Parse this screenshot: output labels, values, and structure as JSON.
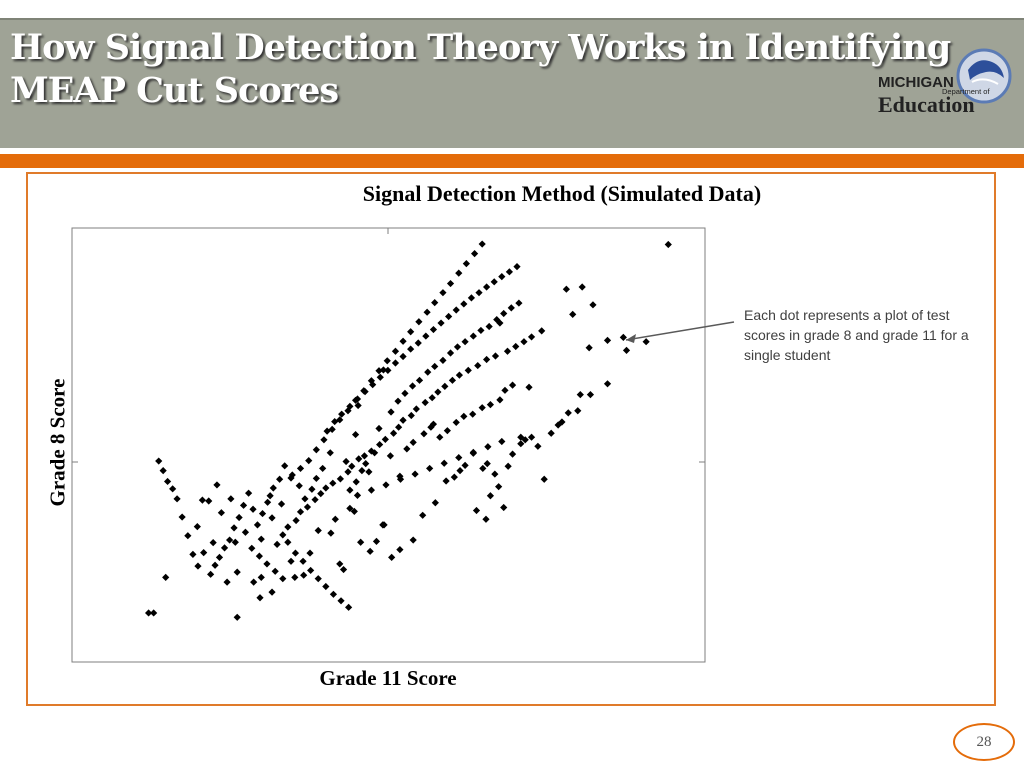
{
  "slide": {
    "title_line1": "How Signal Detection Theory Works in Identifying",
    "title_line2": "MEAP Cut Scores",
    "page_number": "28",
    "logo": {
      "line1": "MICHIGAN",
      "line2": "Department of",
      "line3": "Education"
    },
    "annotation": "Each dot represents a plot of test scores in grade 8 and grade 11 for a single student",
    "colors": {
      "header": "#9fa396",
      "accent": "#e46c0a",
      "marker": "#000000"
    }
  },
  "chart_data": {
    "type": "scatter",
    "title": "Signal Detection Method (Simulated Data)",
    "xlabel": "Grade 11 Score",
    "ylabel": "Grade 8 Score",
    "xlim": [
      0,
      100
    ],
    "ylim": [
      0,
      100
    ],
    "grid": false,
    "marker": "diamond",
    "points": [
      [
        12.1,
        11.3
      ],
      [
        12.9,
        11.3
      ],
      [
        14.8,
        19.5
      ],
      [
        21.6,
        37.1
      ],
      [
        25.1,
        37.6
      ],
      [
        26.1,
        20.7
      ],
      [
        29.9,
        19.5
      ],
      [
        28.7,
        18.4
      ],
      [
        31.6,
        16.1
      ],
      [
        35.2,
        19.5
      ],
      [
        34.6,
        23.2
      ],
      [
        36.6,
        20.0
      ],
      [
        37.6,
        25.1
      ],
      [
        38.9,
        30.3
      ],
      [
        40.9,
        29.7
      ],
      [
        42.3,
        22.6
      ],
      [
        42.9,
        21.3
      ],
      [
        41.6,
        32.9
      ],
      [
        43.9,
        35.4
      ],
      [
        44.6,
        34.7
      ],
      [
        45.6,
        27.6
      ],
      [
        47.1,
        25.5
      ],
      [
        48.1,
        27.8
      ],
      [
        49.3,
        31.6
      ],
      [
        50.5,
        24.1
      ],
      [
        51.8,
        25.9
      ],
      [
        53.9,
        28.1
      ],
      [
        55.4,
        33.8
      ],
      [
        57.4,
        36.7
      ],
      [
        59.1,
        41.7
      ],
      [
        60.4,
        42.6
      ],
      [
        61.3,
        44.1
      ],
      [
        62.1,
        45.3
      ],
      [
        63.4,
        48.1
      ],
      [
        64.9,
        44.6
      ],
      [
        65.6,
        45.7
      ],
      [
        66.8,
        43.3
      ],
      [
        67.4,
        40.4
      ],
      [
        68.9,
        45.1
      ],
      [
        69.6,
        47.9
      ],
      [
        70.9,
        50.3
      ],
      [
        71.6,
        51.2
      ],
      [
        72.6,
        51.8
      ],
      [
        73.6,
        49.7
      ],
      [
        74.6,
        42.1
      ],
      [
        75.7,
        52.7
      ],
      [
        76.8,
        54.6
      ],
      [
        77.4,
        55.3
      ],
      [
        78.4,
        57.4
      ],
      [
        79.9,
        57.9
      ],
      [
        80.3,
        61.6
      ],
      [
        81.9,
        61.6
      ],
      [
        63.9,
        34.9
      ],
      [
        65.4,
        32.9
      ],
      [
        66.1,
        38.3
      ],
      [
        68.2,
        35.6
      ],
      [
        70.9,
        51.8
      ],
      [
        48.5,
        53.8
      ],
      [
        49.1,
        31.6
      ],
      [
        50.3,
        47.5
      ],
      [
        51.8,
        42.8
      ],
      [
        46.9,
        43.8
      ],
      [
        43.9,
        39.6
      ],
      [
        44.9,
        41.5
      ],
      [
        45.8,
        44.1
      ],
      [
        46.4,
        45.7
      ],
      [
        47.8,
        48.2
      ],
      [
        52.9,
        49.1
      ],
      [
        53.9,
        50.6
      ],
      [
        55.6,
        52.6
      ],
      [
        56.7,
        54.1
      ],
      [
        57.1,
        54.8
      ],
      [
        58.1,
        51.8
      ],
      [
        59.3,
        53.3
      ],
      [
        60.7,
        55.2
      ],
      [
        61.9,
        56.6
      ],
      [
        63.3,
        57.1
      ],
      [
        64.8,
        58.6
      ],
      [
        66.1,
        59.3
      ],
      [
        67.6,
        60.4
      ],
      [
        68.4,
        62.6
      ],
      [
        69.6,
        63.8
      ],
      [
        72.2,
        63.3
      ],
      [
        31.6,
        33.2
      ],
      [
        32.4,
        27.1
      ],
      [
        33.3,
        29.3
      ],
      [
        34.1,
        31.1
      ],
      [
        35.4,
        32.6
      ],
      [
        36.1,
        34.6
      ],
      [
        37.2,
        35.7
      ],
      [
        38.4,
        37.4
      ],
      [
        39.3,
        38.8
      ],
      [
        40.1,
        40.1
      ],
      [
        41.2,
        41.2
      ],
      [
        42.4,
        42.2
      ],
      [
        43.6,
        43.8
      ],
      [
        44.2,
        45.1
      ],
      [
        45.3,
        46.8
      ],
      [
        46.2,
        47.5
      ],
      [
        47.3,
        48.6
      ],
      [
        48.6,
        50.1
      ],
      [
        49.5,
        51.3
      ],
      [
        50.8,
        52.7
      ],
      [
        51.6,
        54.1
      ],
      [
        52.3,
        55.7
      ],
      [
        53.6,
        56.8
      ],
      [
        54.4,
        58.3
      ],
      [
        55.8,
        59.8
      ],
      [
        56.9,
        60.9
      ],
      [
        57.8,
        62.2
      ],
      [
        58.9,
        63.5
      ],
      [
        60.1,
        64.9
      ],
      [
        61.2,
        66.1
      ],
      [
        62.6,
        67.2
      ],
      [
        64.1,
        68.3
      ],
      [
        65.5,
        69.7
      ],
      [
        66.9,
        70.5
      ],
      [
        68.8,
        71.6
      ],
      [
        70.1,
        72.7
      ],
      [
        71.4,
        73.8
      ],
      [
        72.6,
        74.9
      ],
      [
        74.2,
        76.3
      ],
      [
        79.1,
        80.1
      ],
      [
        81.7,
        72.4
      ],
      [
        84.6,
        64.1
      ],
      [
        87.6,
        71.8
      ],
      [
        90.7,
        73.8
      ],
      [
        94.2,
        96.2
      ],
      [
        87.1,
        74.8
      ],
      [
        84.6,
        74.1
      ],
      [
        67.6,
        78.1
      ],
      [
        49.2,
        67.3
      ],
      [
        45.2,
        59.1
      ],
      [
        44.8,
        52.4
      ],
      [
        43.3,
        46.2
      ],
      [
        40.8,
        48.2
      ],
      [
        39.6,
        44.6
      ],
      [
        38.6,
        42.3
      ],
      [
        37.9,
        39.8
      ],
      [
        36.8,
        37.6
      ],
      [
        35.9,
        40.6
      ],
      [
        34.8,
        43.1
      ],
      [
        33.6,
        45.2
      ],
      [
        32.8,
        42.1
      ],
      [
        31.8,
        40.1
      ],
      [
        30.9,
        36.8
      ],
      [
        30.1,
        34.2
      ],
      [
        29.3,
        31.6
      ],
      [
        28.6,
        35.2
      ],
      [
        27.9,
        38.9
      ],
      [
        27.1,
        36.1
      ],
      [
        26.4,
        33.3
      ],
      [
        25.6,
        30.9
      ],
      [
        24.9,
        28.1
      ],
      [
        24.1,
        26.3
      ],
      [
        23.3,
        24.1
      ],
      [
        22.6,
        22.3
      ],
      [
        21.9,
        20.2
      ],
      [
        20.8,
        25.2
      ],
      [
        19.9,
        22.1
      ],
      [
        19.1,
        24.8
      ],
      [
        18.3,
        29.1
      ],
      [
        17.4,
        33.4
      ],
      [
        16.6,
        37.6
      ],
      [
        15.9,
        39.9
      ],
      [
        15.1,
        41.6
      ],
      [
        14.4,
        44.1
      ],
      [
        13.7,
        46.3
      ],
      [
        50.4,
        57.6
      ],
      [
        51.5,
        60.1
      ],
      [
        52.6,
        61.9
      ],
      [
        53.8,
        63.6
      ],
      [
        54.9,
        64.9
      ],
      [
        56.2,
        66.8
      ],
      [
        57.3,
        68.1
      ],
      [
        58.6,
        69.5
      ],
      [
        59.8,
        71.2
      ],
      [
        60.9,
        72.6
      ],
      [
        62.1,
        73.8
      ],
      [
        63.4,
        75.1
      ],
      [
        64.6,
        76.4
      ],
      [
        65.9,
        77.3
      ],
      [
        67.1,
        78.9
      ],
      [
        68.2,
        80.3
      ],
      [
        69.4,
        81.6
      ],
      [
        70.6,
        82.7
      ],
      [
        40.3,
        53.2
      ],
      [
        41.5,
        55.4
      ],
      [
        42.6,
        57.1
      ],
      [
        43.9,
        58.9
      ],
      [
        45.1,
        60.6
      ],
      [
        46.3,
        62.3
      ],
      [
        47.5,
        63.9
      ],
      [
        48.7,
        65.6
      ],
      [
        49.9,
        67.2
      ],
      [
        51.1,
        68.9
      ],
      [
        52.3,
        70.4
      ],
      [
        53.5,
        72.1
      ],
      [
        54.7,
        73.5
      ],
      [
        55.9,
        75.1
      ],
      [
        57.1,
        76.6
      ],
      [
        58.3,
        78.1
      ],
      [
        59.5,
        79.6
      ],
      [
        60.7,
        81.1
      ],
      [
        61.9,
        82.5
      ],
      [
        63.1,
        83.9
      ],
      [
        64.3,
        85.1
      ],
      [
        65.5,
        86.4
      ],
      [
        66.7,
        87.6
      ],
      [
        67.9,
        88.8
      ],
      [
        69.1,
        89.9
      ],
      [
        70.3,
        91.1
      ],
      [
        34.1,
        27.6
      ],
      [
        35.3,
        25.1
      ],
      [
        36.5,
        23.2
      ],
      [
        37.7,
        21.1
      ],
      [
        38.9,
        19.2
      ],
      [
        40.1,
        17.4
      ],
      [
        41.3,
        15.6
      ],
      [
        42.5,
        14.1
      ],
      [
        43.7,
        12.6
      ],
      [
        28.4,
        26.2
      ],
      [
        29.6,
        24.4
      ],
      [
        30.8,
        22.6
      ],
      [
        32.1,
        20.9
      ],
      [
        33.3,
        19.2
      ],
      [
        20.6,
        37.3
      ],
      [
        23.6,
        34.4
      ],
      [
        25.8,
        27.6
      ],
      [
        27.4,
        29.9
      ],
      [
        29.9,
        28.3
      ],
      [
        31.3,
        38.3
      ],
      [
        33.1,
        36.4
      ],
      [
        34.6,
        42.4
      ],
      [
        36.1,
        44.6
      ],
      [
        37.4,
        46.4
      ],
      [
        38.6,
        48.9
      ],
      [
        39.8,
        51.2
      ],
      [
        41.1,
        53.6
      ],
      [
        42.3,
        55.8
      ],
      [
        43.6,
        57.9
      ],
      [
        44.8,
        60.3
      ],
      [
        46.1,
        62.5
      ],
      [
        47.3,
        64.8
      ],
      [
        48.5,
        67.1
      ],
      [
        49.8,
        69.4
      ],
      [
        51.1,
        71.6
      ],
      [
        52.3,
        73.9
      ],
      [
        53.5,
        76.1
      ],
      [
        54.8,
        78.4
      ],
      [
        56.1,
        80.6
      ],
      [
        57.3,
        82.8
      ],
      [
        58.6,
        85.1
      ],
      [
        59.8,
        87.2
      ],
      [
        61.1,
        89.6
      ],
      [
        62.3,
        91.8
      ],
      [
        63.6,
        94.1
      ],
      [
        64.8,
        96.3
      ],
      [
        78.1,
        85.9
      ],
      [
        80.6,
        86.4
      ],
      [
        82.3,
        82.3
      ],
      [
        26.1,
        10.3
      ],
      [
        29.7,
        14.8
      ],
      [
        24.5,
        18.4
      ],
      [
        22.3,
        27.5
      ],
      [
        19.8,
        31.2
      ],
      [
        22.9,
        40.8
      ],
      [
        45.1,
        38.4
      ],
      [
        47.3,
        39.6
      ],
      [
        49.6,
        40.8
      ],
      [
        51.9,
        42.1
      ],
      [
        54.2,
        43.3
      ],
      [
        56.5,
        44.6
      ],
      [
        58.8,
        45.8
      ],
      [
        61.1,
        47.1
      ],
      [
        63.4,
        48.3
      ],
      [
        65.7,
        49.6
      ],
      [
        67.9,
        50.8
      ]
    ],
    "annotation": "Each dot represents a plot of test scores in grade 8 and grade 11 for a single student"
  }
}
